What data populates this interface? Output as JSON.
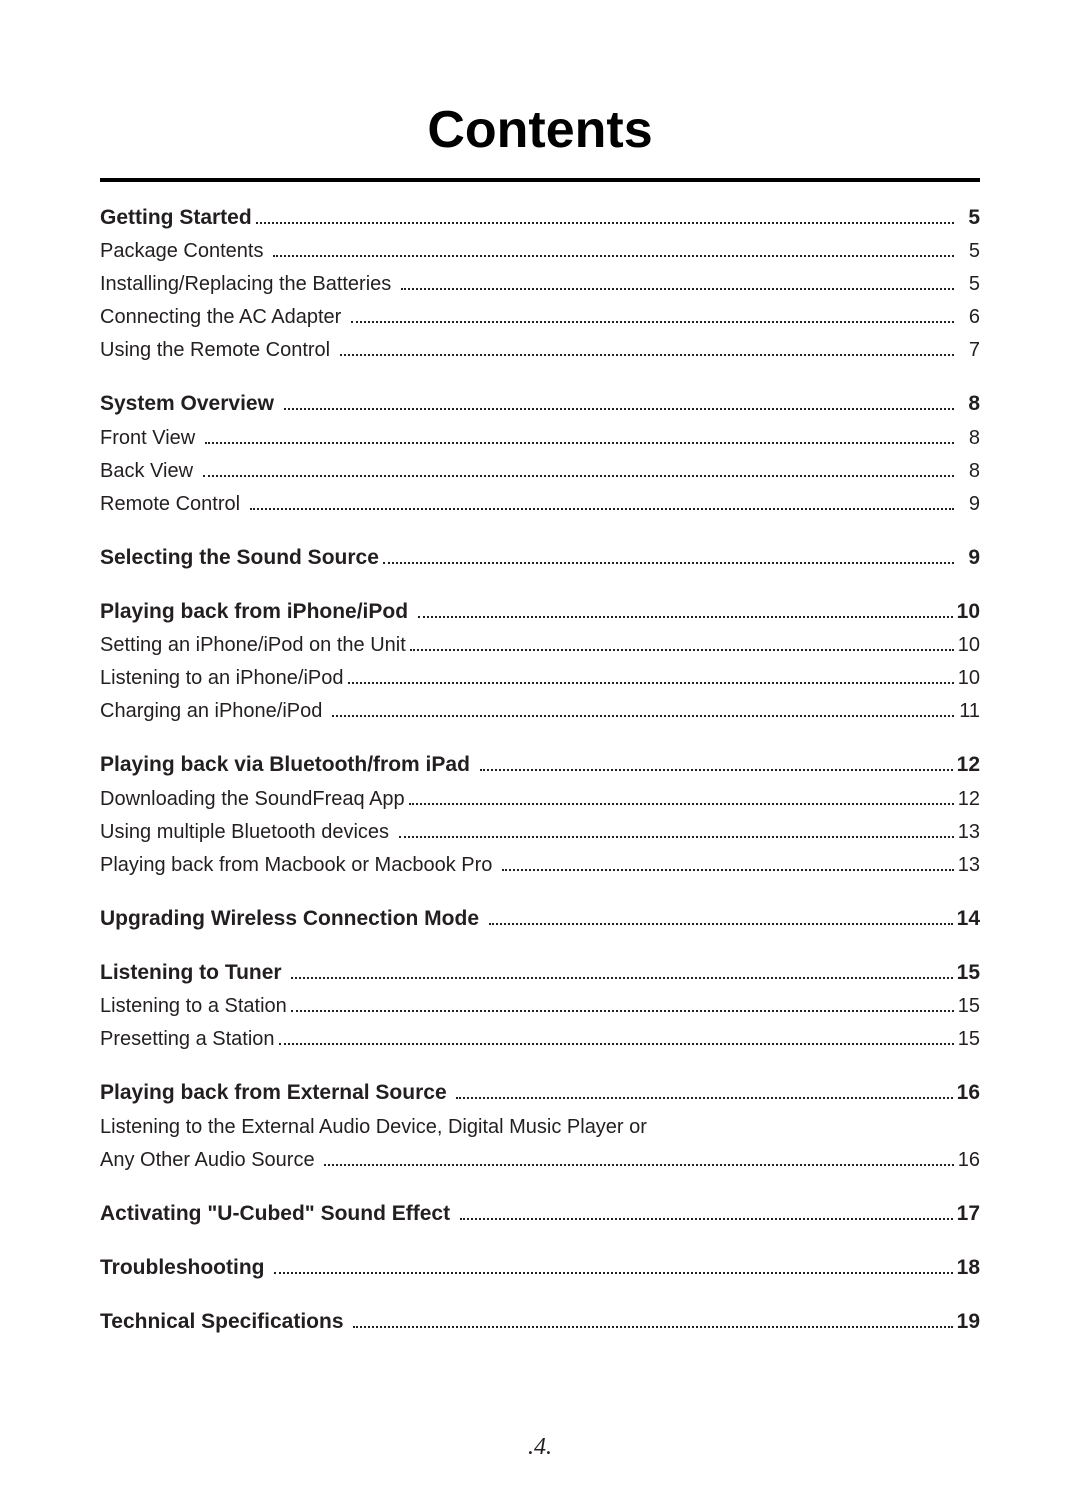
{
  "title": "Contents",
  "page_number": ".4.",
  "colors": {
    "text": "#231f20",
    "rule": "#000000",
    "background": "#ffffff"
  },
  "typography": {
    "title_fontsize": 52,
    "heading_fontsize": 21,
    "sub_fontsize": 20,
    "footer_fontsize": 24
  },
  "toc": [
    {
      "heading": {
        "label": "Getting Started",
        "page": "5"
      },
      "items": [
        {
          "label": "Package Contents ",
          "page": "5"
        },
        {
          "label": "Installing/Replacing the Batteries ",
          "page": "5"
        },
        {
          "label": "Connecting the AC Adapter ",
          "page": "6"
        },
        {
          "label": "Using the Remote Control ",
          "page": "7"
        }
      ]
    },
    {
      "heading": {
        "label": "System Overview ",
        "page": "8"
      },
      "items": [
        {
          "label": "Front View ",
          "page": "8"
        },
        {
          "label": "Back View ",
          "page": "8"
        },
        {
          "label": "Remote Control ",
          "page": "9"
        }
      ]
    },
    {
      "heading": {
        "label": "Selecting the Sound Source",
        "page": "9"
      },
      "items": []
    },
    {
      "heading": {
        "label": "Playing back from iPhone/iPod ",
        "page": "10"
      },
      "items": [
        {
          "label": "Setting an iPhone/iPod on the Unit",
          "page": "10"
        },
        {
          "label": "Listening to an iPhone/iPod",
          "page": "10"
        },
        {
          "label": "Charging an iPhone/iPod ",
          "page": "11"
        }
      ]
    },
    {
      "heading": {
        "label": "Playing back via Bluetooth/from iPad ",
        "page": "12"
      },
      "items": [
        {
          "label": "Downloading the SoundFreaq App",
          "page": "12"
        },
        {
          "label": "Using multiple Bluetooth devices ",
          "page": "13"
        },
        {
          "label": "Playing back from Macbook or Macbook Pro ",
          "page": "13"
        }
      ]
    },
    {
      "heading": {
        "label": "Upgrading Wireless Connection Mode ",
        "page": "14"
      },
      "items": []
    },
    {
      "heading": {
        "label": "Listening to Tuner ",
        "page": "15"
      },
      "items": [
        {
          "label": "Listening to a Station",
          "page": "15"
        },
        {
          "label": "Presetting a Station",
          "page": "15"
        }
      ]
    },
    {
      "heading": {
        "label": "Playing back from External Source ",
        "page": "16"
      },
      "continuation": "Listening to the External Audio Device, Digital Music Player or",
      "items": [
        {
          "label": "Any Other Audio Source ",
          "page": "16"
        }
      ]
    },
    {
      "heading": {
        "label": "Activating \"U-Cubed\" Sound Effect ",
        "page": "17"
      },
      "items": []
    },
    {
      "heading": {
        "label": "Troubleshooting ",
        "page": "18"
      },
      "items": []
    },
    {
      "heading": {
        "label": "Technical Specifications ",
        "page": "19"
      },
      "items": []
    }
  ]
}
